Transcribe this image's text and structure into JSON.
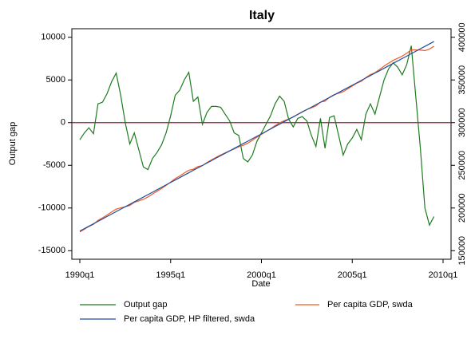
{
  "chart_data": {
    "type": "line",
    "title": "Italy",
    "x_label": "Date",
    "y_label": "Output gap",
    "x": [
      "1990q1",
      "1990q2",
      "1990q3",
      "1990q4",
      "1991q1",
      "1991q2",
      "1991q3",
      "1991q4",
      "1992q1",
      "1992q2",
      "1992q3",
      "1992q4",
      "1993q1",
      "1993q2",
      "1993q3",
      "1993q4",
      "1994q1",
      "1994q2",
      "1994q3",
      "1994q4",
      "1995q1",
      "1995q2",
      "1995q3",
      "1995q4",
      "1996q1",
      "1996q2",
      "1996q3",
      "1996q4",
      "1997q1",
      "1997q2",
      "1997q3",
      "1997q4",
      "1998q1",
      "1998q2",
      "1998q3",
      "1998q4",
      "1999q1",
      "1999q2",
      "1999q3",
      "1999q4",
      "2000q1",
      "2000q2",
      "2000q3",
      "2000q4",
      "2001q1",
      "2001q2",
      "2001q3",
      "2001q4",
      "2002q1",
      "2002q2",
      "2002q3",
      "2002q4",
      "2003q1",
      "2003q2",
      "2003q3",
      "2003q4",
      "2004q1",
      "2004q2",
      "2004q3",
      "2004q4",
      "2005q1",
      "2005q2",
      "2005q3",
      "2005q4",
      "2006q1",
      "2006q2",
      "2006q3",
      "2006q4",
      "2007q1",
      "2007q2",
      "2007q3",
      "2007q4",
      "2008q1",
      "2008q2",
      "2008q3",
      "2008q4",
      "2009q1",
      "2009q2",
      "2009q3"
    ],
    "series": [
      {
        "name": "Output gap",
        "color": "#1e7b1e",
        "axis": "y",
        "values": [
          -2000,
          -1200,
          -600,
          -1300,
          2200,
          2400,
          3400,
          4800,
          5800,
          3200,
          0,
          -2500,
          -1200,
          -3200,
          -5200,
          -5500,
          -4200,
          -3500,
          -2600,
          -1200,
          800,
          3200,
          3800,
          5000,
          5900,
          2500,
          3000,
          -200,
          1200,
          1900,
          1900,
          1800,
          1000,
          200,
          -1200,
          -1500,
          -4200,
          -4600,
          -3800,
          -2200,
          -1200,
          -200,
          800,
          2200,
          3100,
          2500,
          400,
          -500,
          500,
          700,
          200,
          -1500,
          -2800,
          500,
          -3000,
          600,
          800,
          -1500,
          -3800,
          -2500,
          -1800,
          -800,
          -2000,
          1000,
          2200,
          1000,
          3000,
          5000,
          6300,
          7000,
          6500,
          5600,
          6800,
          9000,
          3000,
          -3000,
          -10000,
          -12000,
          -11000
        ]
      },
      {
        "name": "Per capita GDP, swda",
        "color": "#f05a28",
        "axis": "y2",
        "values": [
          172000,
          175200,
          178400,
          180900,
          185500,
          188400,
          191800,
          195300,
          198700,
          200200,
          201500,
          203000,
          206600,
          208400,
          210200,
          212900,
          216400,
          219600,
          222900,
          226500,
          230300,
          234400,
          237500,
          241000,
          244200,
          245400,
          248500,
          249700,
          253300,
          256400,
          259300,
          262100,
          264600,
          267000,
          269200,
          271800,
          273400,
          276000,
          279300,
          282900,
          286200,
          289600,
          292900,
          296500,
          299700,
          302300,
          304100,
          306500,
          309800,
          312800,
          315400,
          317300,
          319600,
          324000,
          325200,
          329800,
          332800,
          334400,
          336200,
          339600,
          342900,
          346200,
          348500,
          352800,
          356200,
          358500,
          362300,
          366200,
          369600,
          372900,
          375400,
          377900,
          381300,
          385300,
          385100,
          385000,
          384300,
          386200,
          389500
        ]
      },
      {
        "name": "Per capita GDP, HP filtered, swda",
        "color": "#1f4e9c",
        "axis": "y2",
        "values": [
          173000,
          175800,
          178700,
          181500,
          184400,
          187200,
          190100,
          192900,
          195800,
          198600,
          201500,
          204300,
          207200,
          210000,
          212800,
          215700,
          218500,
          221400,
          224200,
          227100,
          229900,
          232800,
          235600,
          238500,
          241300,
          244200,
          247000,
          249800,
          252700,
          255500,
          258400,
          261200,
          264100,
          266900,
          269800,
          272600,
          275500,
          278300,
          281200,
          284000,
          286800,
          289700,
          292500,
          295400,
          298200,
          301100,
          303900,
          306800,
          309600,
          312500,
          315300,
          318100,
          321000,
          323800,
          326700,
          329500,
          332400,
          335200,
          338100,
          340900,
          343800,
          346600,
          349500,
          352300,
          355100,
          358000,
          360800,
          363700,
          366500,
          369400,
          372200,
          375100,
          377900,
          380800,
          383600,
          386500,
          389300,
          392200,
          395000
        ]
      }
    ],
    "xlim": [
      1989.56,
      2010.44
    ],
    "xticks": [
      {
        "value": 1990,
        "label": "1990q1"
      },
      {
        "value": 1995,
        "label": "1995q1"
      },
      {
        "value": 2000,
        "label": "2000q1"
      },
      {
        "value": 2005,
        "label": "2005q1"
      },
      {
        "value": 2010,
        "label": "2010q1"
      }
    ],
    "ylim": [
      -16000,
      11000
    ],
    "yticks": [
      -15000,
      -10000,
      -5000,
      0,
      5000,
      10000
    ],
    "y2lim": [
      140000,
      410000
    ],
    "y2ticks": [
      150000,
      200000,
      250000,
      300000,
      350000,
      400000
    ],
    "hline": {
      "value": 0,
      "color": "#9b1b30"
    }
  }
}
